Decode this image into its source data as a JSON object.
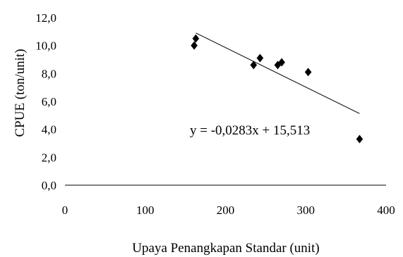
{
  "chart_data": {
    "type": "scatter",
    "title": "",
    "xlabel": "Upaya Penangkapan Standar (unit)",
    "ylabel": "CPUE (ton/unit)",
    "xlim": [
      0,
      400
    ],
    "ylim": [
      0,
      12
    ],
    "x_ticks": [
      0,
      100,
      200,
      300,
      400
    ],
    "x_tick_labels": [
      "0",
      "100",
      "200",
      "300",
      "400"
    ],
    "y_ticks": [
      0,
      2,
      4,
      6,
      8,
      10,
      12
    ],
    "y_tick_labels": [
      "0,0",
      "2,0",
      "4,0",
      "6,0",
      "8,0",
      "10,0",
      "12,0"
    ],
    "grid": false,
    "legend": "none",
    "marker": "diamond",
    "marker_color": "#000000",
    "points": [
      {
        "x": 161,
        "y": 10.0
      },
      {
        "x": 163,
        "y": 10.5
      },
      {
        "x": 235,
        "y": 8.6
      },
      {
        "x": 243,
        "y": 9.1
      },
      {
        "x": 265,
        "y": 8.6
      },
      {
        "x": 270,
        "y": 8.8
      },
      {
        "x": 303,
        "y": 8.1
      },
      {
        "x": 367,
        "y": 3.3
      }
    ],
    "trendline": {
      "slope": -0.0283,
      "intercept": 15.513,
      "x_start": 163,
      "x_end": 367,
      "color": "#000000"
    },
    "equation_label": "y = -0,0283x + 15,513"
  }
}
